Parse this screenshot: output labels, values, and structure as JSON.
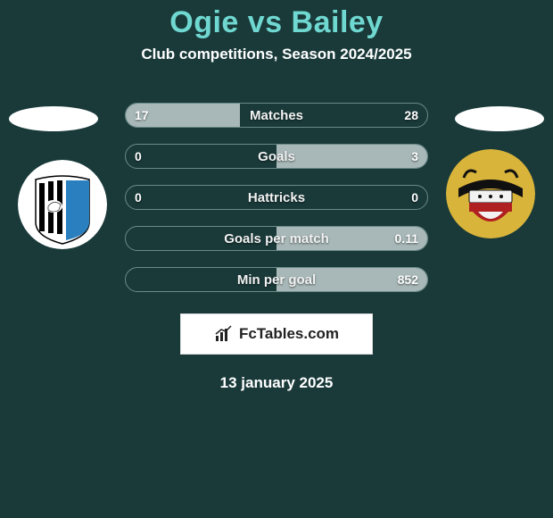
{
  "title": "Ogie vs Bailey",
  "subtitle": "Club competitions, Season 2024/2025",
  "date": "13 january 2025",
  "branding": "FcTables.com",
  "colors": {
    "background": "#1a3a3a",
    "title": "#6fd8d0",
    "text": "#ffffff",
    "bar_border": "#6a8a8a",
    "bar_fill": "#a8b8b8",
    "brand_bg": "#ffffff",
    "brand_text": "#222222"
  },
  "crests": {
    "left": {
      "name": "gillingham-crest",
      "bg": "#ffffff",
      "stripes": "#000000",
      "right_panel": "#2a7fbf"
    },
    "right": {
      "name": "doncaster-crest",
      "bg": "#d9b43a",
      "band": "#b02020",
      "dark": "#101010"
    }
  },
  "bars": [
    {
      "label": "Matches",
      "left_value": "17",
      "right_value": "28",
      "left_pct": 37.8,
      "right_pct": 0
    },
    {
      "label": "Goals",
      "left_value": "0",
      "right_value": "3",
      "left_pct": 0,
      "right_pct": 50
    },
    {
      "label": "Hattricks",
      "left_value": "0",
      "right_value": "0",
      "left_pct": 0,
      "right_pct": 0
    },
    {
      "label": "Goals per match",
      "left_value": "",
      "right_value": "0.11",
      "left_pct": 0,
      "right_pct": 50
    },
    {
      "label": "Min per goal",
      "left_value": "",
      "right_value": "852",
      "left_pct": 0,
      "right_pct": 50
    }
  ]
}
